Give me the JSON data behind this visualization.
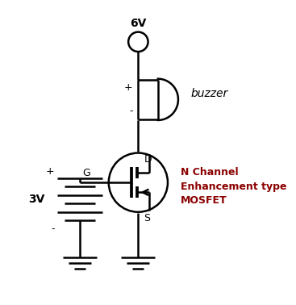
{
  "bg_color": "#ffffff",
  "line_color": "#000000",
  "lw": 1.8,
  "figsize": [
    3.67,
    3.78
  ],
  "dpi": 100,
  "mosfet_label_lines": [
    "N Channel",
    "Enhancement type",
    "MOSFET"
  ],
  "mosfet_label_color": "#8B0000"
}
